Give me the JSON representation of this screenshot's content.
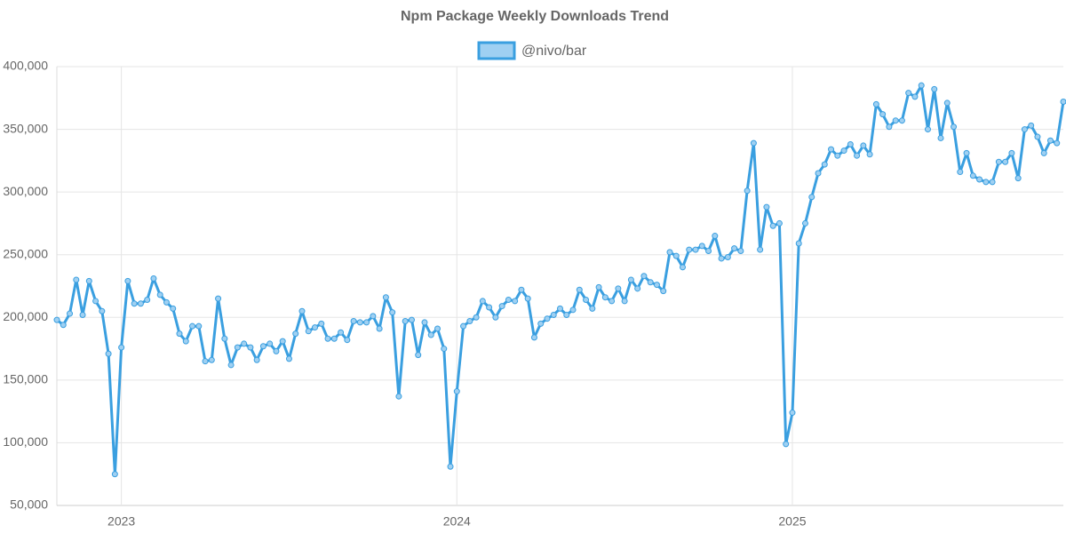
{
  "chart_data": {
    "type": "line",
    "title": "Npm Package Weekly Downloads Trend",
    "categories": [
      null,
      null,
      null,
      null,
      null,
      null,
      null,
      null,
      null,
      null,
      "2023",
      null,
      null,
      null,
      null,
      null,
      null,
      null,
      null,
      null,
      null,
      null,
      null,
      null,
      null,
      null,
      null,
      null,
      null,
      null,
      null,
      null,
      null,
      null,
      null,
      null,
      null,
      null,
      null,
      null,
      null,
      null,
      null,
      null,
      null,
      null,
      null,
      null,
      null,
      null,
      null,
      null,
      null,
      null,
      null,
      null,
      null,
      null,
      null,
      null,
      null,
      null,
      "2024",
      null,
      null,
      null,
      null,
      null,
      null,
      null,
      null,
      null,
      null,
      null,
      null,
      null,
      null,
      null,
      null,
      null,
      null,
      null,
      null,
      null,
      null,
      null,
      null,
      null,
      null,
      null,
      null,
      null,
      null,
      null,
      null,
      null,
      null,
      null,
      null,
      null,
      null,
      null,
      null,
      null,
      null,
      null,
      null,
      null,
      null,
      null,
      null,
      null,
      null,
      null,
      "2025",
      null,
      null,
      null,
      null,
      null,
      null,
      null,
      null,
      null,
      null,
      null,
      null,
      null,
      null,
      null,
      null,
      null,
      null,
      null,
      null,
      null,
      null,
      null,
      null,
      null,
      null,
      null,
      null,
      null,
      null,
      null,
      null,
      null,
      null,
      null,
      null,
      null,
      null,
      null,
      null,
      null,
      null
    ],
    "series": [
      {
        "name": "@nivo/bar",
        "color": "#3a9fe0",
        "values": [
          198000,
          194000,
          203000,
          230000,
          202000,
          229000,
          213000,
          205000,
          171000,
          75000,
          176000,
          229000,
          211000,
          211000,
          214000,
          231000,
          218000,
          212000,
          207000,
          187000,
          181000,
          193000,
          193000,
          165000,
          166000,
          215000,
          183000,
          162000,
          176000,
          179000,
          176000,
          166000,
          177000,
          179000,
          173000,
          181000,
          167000,
          187000,
          205000,
          189000,
          192000,
          195000,
          183000,
          183000,
          188000,
          182000,
          197000,
          196000,
          196000,
          201000,
          191000,
          216000,
          204000,
          137000,
          197000,
          198000,
          170000,
          196000,
          186000,
          191000,
          175000,
          81000,
          141000,
          193000,
          197000,
          200000,
          213000,
          208000,
          200000,
          209000,
          214000,
          213000,
          222000,
          215000,
          184000,
          195000,
          199000,
          202000,
          207000,
          202000,
          206000,
          222000,
          214000,
          207000,
          224000,
          216000,
          213000,
          223000,
          213000,
          230000,
          223000,
          233000,
          228000,
          226000,
          221000,
          252000,
          249000,
          240000,
          254000,
          254000,
          257000,
          253000,
          265000,
          247000,
          248000,
          255000,
          253000,
          301000,
          339000,
          254000,
          288000,
          273000,
          275000,
          99000,
          124000,
          259000,
          275000,
          296000,
          315000,
          322000,
          334000,
          329000,
          333000,
          338000,
          329000,
          337000,
          330000,
          370000,
          362000,
          352000,
          357000,
          357000,
          379000,
          376000,
          385000,
          350000,
          382000,
          343000,
          371000,
          352000,
          316000,
          331000,
          313000,
          310000,
          308000,
          308000,
          324000,
          324000,
          331000,
          311000,
          350000,
          353000,
          344000,
          331000,
          341000,
          339000,
          372000
        ]
      }
    ],
    "ylim": [
      50000,
      400000
    ],
    "yticks": [
      {
        "value": 50000,
        "label": "50,000"
      },
      {
        "value": 100000,
        "label": "100,000"
      },
      {
        "value": 150000,
        "label": "150,000"
      },
      {
        "value": 200000,
        "label": "200,000"
      },
      {
        "value": 250000,
        "label": "250,000"
      },
      {
        "value": 300000,
        "label": "300,000"
      },
      {
        "value": 350000,
        "label": "350,000"
      },
      {
        "value": 400000,
        "label": "400,000"
      }
    ],
    "grid": true
  }
}
